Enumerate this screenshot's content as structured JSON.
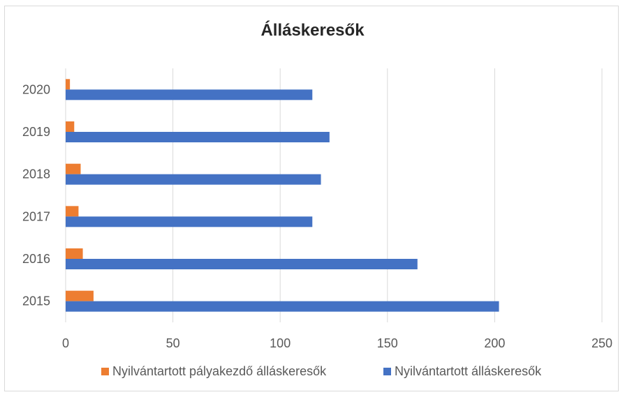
{
  "chart_data": {
    "type": "bar",
    "orientation": "horizontal",
    "title": "Álláskeresők",
    "xlabel": "",
    "ylabel": "",
    "categories": [
      "2015",
      "2016",
      "2017",
      "2018",
      "2019",
      "2020"
    ],
    "xlim": [
      0,
      250
    ],
    "x_ticks": [
      0,
      50,
      100,
      150,
      200,
      250
    ],
    "grid": true,
    "legend_position": "bottom",
    "series": [
      {
        "name": "Nyilvántartott pályakezdő álláskeresők",
        "color": "#ed7d31",
        "values": [
          13,
          8,
          6,
          7,
          4,
          2
        ]
      },
      {
        "name": "Nyilvántartott álláskeresők",
        "color": "#4472c4",
        "values": [
          202,
          164,
          115,
          119,
          123,
          115
        ]
      }
    ]
  }
}
